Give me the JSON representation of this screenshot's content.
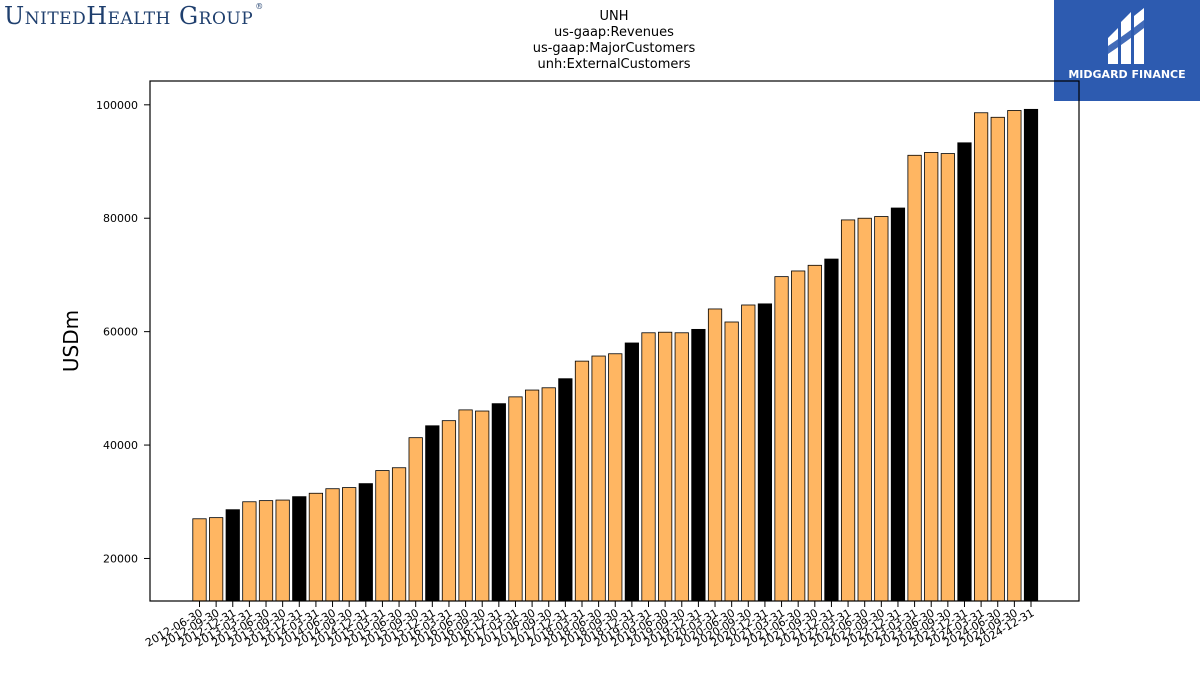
{
  "logos": {
    "left": "UnitedHealth Group",
    "left_mark": "®",
    "right": "MIDGARD FINANCE"
  },
  "colors": {
    "bar_regular": "#ffb662",
    "bar_q4": "#000000",
    "right_logo_bg": "#2d5bb0",
    "left_logo_text": "#1f3f6e"
  },
  "chart_data": {
    "type": "bar",
    "title_lines": [
      "UNH",
      "us-gaap:Revenues",
      "us-gaap:MajorCustomers",
      "unh:ExternalCustomers"
    ],
    "xlabel": "",
    "ylabel": "USDm",
    "ylim": [
      12500,
      104200
    ],
    "yticks": [
      20000,
      40000,
      60000,
      80000,
      100000
    ],
    "grid": false,
    "highlight_rule": "Q4 (YYYY-12-31) bars drawn in black",
    "categories": [
      "2012-06-30",
      "2012-09-30",
      "2012-12-31",
      "2013-03-31",
      "2013-06-30",
      "2013-09-30",
      "2013-12-31",
      "2014-03-31",
      "2014-06-30",
      "2014-09-30",
      "2014-12-31",
      "2015-03-31",
      "2015-06-30",
      "2015-09-30",
      "2015-12-31",
      "2016-03-31",
      "2016-06-30",
      "2016-09-30",
      "2016-12-31",
      "2017-03-31",
      "2017-06-30",
      "2017-09-30",
      "2017-12-31",
      "2018-03-31",
      "2018-06-30",
      "2018-09-30",
      "2018-12-31",
      "2019-03-31",
      "2019-06-30",
      "2019-09-30",
      "2019-12-31",
      "2020-03-31",
      "2020-06-30",
      "2020-09-30",
      "2020-12-31",
      "2021-03-31",
      "2021-06-30",
      "2021-09-30",
      "2021-12-31",
      "2022-03-31",
      "2022-06-30",
      "2022-09-30",
      "2022-12-31",
      "2023-03-31",
      "2023-06-30",
      "2023-09-30",
      "2023-12-31",
      "2024-03-31",
      "2024-06-30",
      "2024-09-30",
      "2024-12-31"
    ],
    "values": [
      27000,
      27200,
      28600,
      30000,
      30200,
      30300,
      30900,
      31500,
      32300,
      32500,
      33200,
      35500,
      36000,
      41300,
      43400,
      44300,
      46200,
      46000,
      47300,
      48500,
      49700,
      50100,
      51700,
      54800,
      55700,
      56100,
      58000,
      59800,
      59900,
      59800,
      60400,
      64000,
      61700,
      64700,
      64900,
      69700,
      70700,
      71700,
      72800,
      79700,
      80000,
      80300,
      81800,
      91100,
      91600,
      91400,
      93300,
      98600,
      97800,
      99000,
      99200
    ]
  }
}
